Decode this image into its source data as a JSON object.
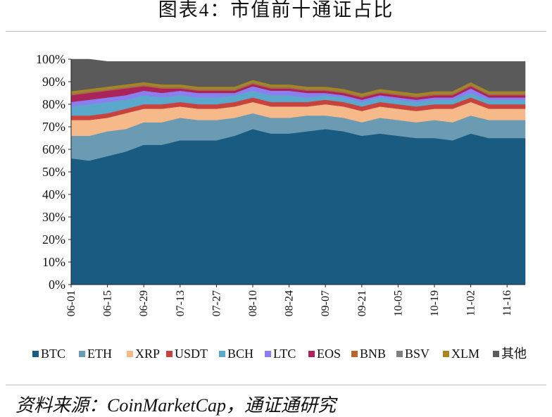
{
  "figure": {
    "title": "图表4：市值前十通证占比",
    "source": "资料来源：CoinMarketCap，通证通研究"
  },
  "chart_data": {
    "type": "area",
    "stacked": true,
    "normalized_percent": true,
    "x": [
      "06-01",
      "06-08",
      "06-15",
      "06-22",
      "06-29",
      "07-06",
      "07-13",
      "07-20",
      "07-27",
      "08-03",
      "08-10",
      "08-17",
      "08-24",
      "08-31",
      "09-07",
      "09-14",
      "09-21",
      "09-28",
      "10-05",
      "10-12",
      "10-19",
      "10-26",
      "11-02",
      "11-09",
      "11-16",
      "11-23"
    ],
    "xticks": [
      "06-01",
      "06-15",
      "06-29",
      "07-13",
      "07-27",
      "08-10",
      "08-24",
      "09-07",
      "09-21",
      "10-05",
      "10-19",
      "11-02",
      "11-16"
    ],
    "yticks": [
      "0%",
      "10%",
      "20%",
      "30%",
      "40%",
      "50%",
      "60%",
      "70%",
      "80%",
      "90%",
      "100%"
    ],
    "ylim": [
      0,
      100
    ],
    "legend_position": "bottom",
    "series": [
      {
        "name": "BTC",
        "color": "#1a5b82",
        "values": [
          56,
          55,
          57,
          59,
          62,
          62,
          64,
          64,
          64,
          66,
          69,
          67,
          67,
          68,
          69,
          68,
          66,
          67,
          66,
          65,
          65,
          64,
          67,
          65,
          65,
          65
        ]
      },
      {
        "name": "ETH",
        "color": "#6b9bb3",
        "values": [
          10,
          11,
          11,
          10,
          10,
          10,
          10,
          9,
          9,
          8,
          7,
          7,
          7,
          7,
          6,
          6,
          6,
          7,
          7,
          7,
          8,
          8,
          8,
          8,
          8,
          8
        ]
      },
      {
        "name": "XRP",
        "color": "#f5b98a",
        "values": [
          7,
          7,
          6,
          7,
          6,
          6,
          5,
          5,
          5,
          5,
          5,
          5,
          5,
          4,
          5,
          5,
          5,
          5,
          5,
          5,
          5,
          6,
          6,
          5,
          5,
          5
        ]
      },
      {
        "name": "USDT",
        "color": "#c8433e",
        "values": [
          2,
          2,
          2,
          2,
          2,
          2,
          2,
          2,
          2,
          2,
          2,
          2,
          2,
          2,
          2,
          2,
          2,
          2,
          2,
          2,
          2,
          2,
          2,
          2,
          2,
          2
        ]
      },
      {
        "name": "BCH",
        "color": "#5aa8cc",
        "values": [
          4,
          5,
          5,
          4,
          4,
          3,
          3,
          3,
          3,
          3,
          3,
          3,
          3,
          2,
          2,
          2,
          2,
          2,
          2,
          2,
          2,
          2,
          2,
          2,
          2,
          2
        ]
      },
      {
        "name": "LTC",
        "color": "#8b7ff0",
        "values": [
          2,
          2,
          2,
          2,
          2,
          2,
          2,
          2,
          2,
          1,
          2,
          2,
          2,
          2,
          1,
          1,
          1,
          1,
          1,
          1,
          1,
          1,
          2,
          1,
          1,
          1
        ]
      },
      {
        "name": "EOS",
        "color": "#a8245a",
        "values": [
          3,
          3,
          3,
          3,
          2,
          2,
          1,
          1,
          1,
          1,
          1,
          1,
          1,
          1,
          1,
          1,
          1,
          1,
          1,
          1,
          1,
          1,
          1,
          1,
          1,
          1
        ]
      },
      {
        "name": "BNB",
        "color": "#b5652e",
        "values": [
          0.5,
          0.5,
          0.5,
          0.5,
          0.5,
          0.5,
          0.5,
          0.5,
          0.5,
          0.5,
          0.5,
          0.5,
          0.5,
          0.5,
          0.5,
          0.5,
          0.5,
          0.5,
          0.5,
          0.5,
          0.5,
          0.5,
          0.5,
          0.5,
          0.5,
          0.5
        ]
      },
      {
        "name": "BSV",
        "color": "#7f7f7f",
        "values": [
          0.3,
          0.3,
          0.3,
          0.3,
          0.3,
          0.3,
          0.3,
          0.3,
          0.3,
          0.3,
          0.3,
          0.3,
          0.3,
          0.3,
          0.3,
          0.3,
          0.3,
          0.3,
          0.3,
          0.3,
          0.3,
          0.3,
          0.3,
          0.3,
          0.3,
          0.3
        ]
      },
      {
        "name": "XLM",
        "color": "#a8861c",
        "values": [
          1,
          1,
          1,
          1,
          1,
          1,
          1,
          1,
          1,
          1,
          1,
          1,
          1,
          1,
          1,
          1,
          1,
          1,
          1,
          1,
          1,
          1,
          1,
          1,
          1,
          1
        ]
      },
      {
        "name": "其他",
        "color": "#5a5a5a",
        "values": [
          14.2,
          13.2,
          11.2,
          10.2,
          9.2,
          10.2,
          10.2,
          11.2,
          11.2,
          11.2,
          8.2,
          10.2,
          10.2,
          11.2,
          11.2,
          12.2,
          14.2,
          12.2,
          13.2,
          14.2,
          13.2,
          13.2,
          9.2,
          13.2,
          13.2,
          13.2
        ]
      }
    ]
  }
}
